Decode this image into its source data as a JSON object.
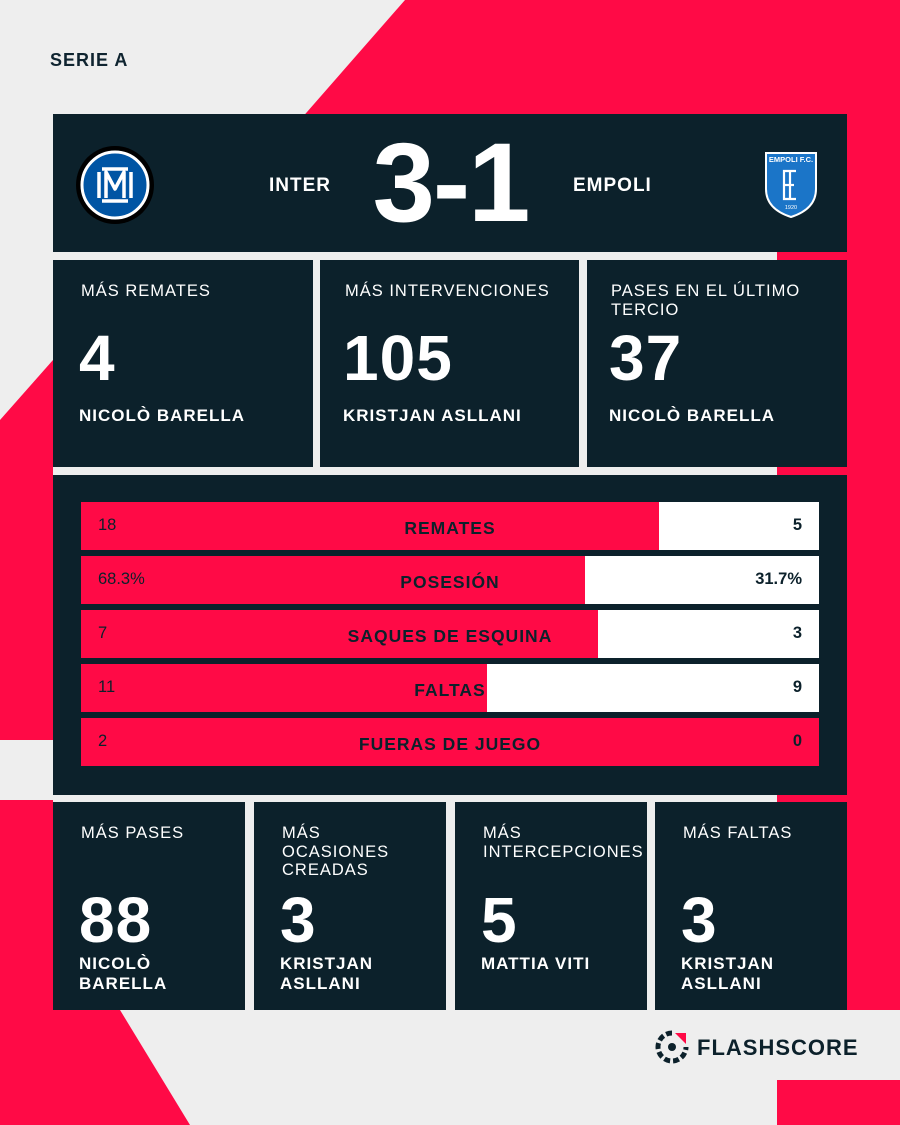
{
  "league": "SERIE A",
  "match": {
    "home_team": "INTER",
    "away_team": "EMPOLI",
    "score": "3-1"
  },
  "top_stats": [
    {
      "label": "MÁS REMATES",
      "value": "4",
      "player": "NICOLÒ BARELLA"
    },
    {
      "label": "MÁS INTERVENCIONES",
      "value": "105",
      "player": "KRISTJAN ASLLANI"
    },
    {
      "label": "PASES EN EL ÚLTIMO TERCIO",
      "value": "37",
      "player": "NICOLÒ BARELLA"
    }
  ],
  "team_stats": [
    {
      "label": "REMATES",
      "home": "18",
      "away": "5",
      "home_share": 0.783
    },
    {
      "label": "POSESIÓN",
      "home": "68.3%",
      "away": "31.7%",
      "home_share": 0.683
    },
    {
      "label": "SAQUES DE ESQUINA",
      "home": "7",
      "away": "3",
      "home_share": 0.7
    },
    {
      "label": "FALTAS",
      "home": "11",
      "away": "9",
      "home_share": 0.55
    },
    {
      "label": "FUERAS DE JUEGO",
      "home": "2",
      "away": "0",
      "home_share": 1.0
    }
  ],
  "bottom_stats": [
    {
      "label": "MÁS PASES",
      "value": "88",
      "player": "NICOLÒ BARELLA"
    },
    {
      "label": "MÁS OCASIONES CREADAS",
      "value": "3",
      "player": "KRISTJAN ASLLANI"
    },
    {
      "label": "MÁS INTERCEPCIONES",
      "value": "5",
      "player": "MATTIA VITI"
    },
    {
      "label": "MÁS FALTAS",
      "value": "3",
      "player": "KRISTJAN ASLLANI"
    }
  ],
  "away_crest_text": "EMPOLI F.C.",
  "away_crest_year": "1920",
  "brand": "FLASHSCORE",
  "colors": {
    "accent": "#ff0a46",
    "panel": "#0c212b",
    "background": "#eeeeee"
  }
}
